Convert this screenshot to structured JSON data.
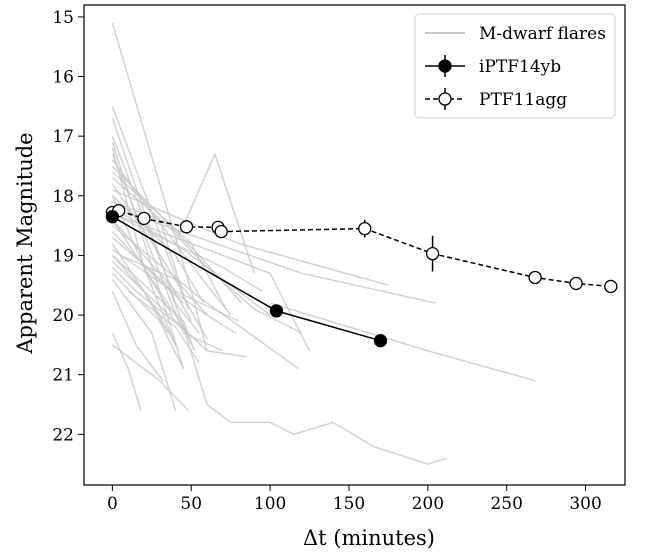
{
  "chart_data": {
    "type": "line",
    "xlabel": "Δt (minutes)",
    "ylabel": "Apparent Magnitude",
    "xlim": [
      -18,
      325
    ],
    "ylim": [
      22.85,
      14.8
    ],
    "y_inverted": true,
    "grid": false,
    "legend_placement": "top-right",
    "xticks": [
      0,
      50,
      100,
      150,
      200,
      250,
      300
    ],
    "yticks": [
      15,
      16,
      17,
      18,
      19,
      20,
      21,
      22
    ],
    "series": [
      {
        "name": "M-dwarf flares",
        "style": "faint-lines",
        "color": "#c8c8c8",
        "lines": [
          [
            [
              0,
              15.1
            ],
            [
              50,
              19.6
            ],
            [
              60,
              20.6
            ]
          ],
          [
            [
              0,
              16.5
            ],
            [
              45,
              19.7
            ],
            [
              60,
              20.4
            ]
          ],
          [
            [
              0,
              16.7
            ],
            [
              40,
              19.8
            ],
            [
              55,
              20.3
            ]
          ],
          [
            [
              0,
              17.0
            ],
            [
              35,
              19.4
            ],
            [
              50,
              20.1
            ]
          ],
          [
            [
              0,
              17.1
            ],
            [
              30,
              19.6
            ],
            [
              45,
              20.9
            ]
          ],
          [
            [
              0,
              17.2
            ],
            [
              20,
              19.2
            ],
            [
              40,
              20.5
            ]
          ],
          [
            [
              0,
              17.3
            ],
            [
              45,
              20.3
            ],
            [
              70,
              20.6
            ]
          ],
          [
            [
              0,
              17.4
            ],
            [
              60,
              19.5
            ],
            [
              75,
              20.0
            ]
          ],
          [
            [
              0,
              17.5
            ],
            [
              55,
              19.0
            ],
            [
              82,
              19.8
            ]
          ],
          [
            [
              0,
              17.6
            ],
            [
              50,
              18.8
            ],
            [
              72,
              19.9
            ]
          ],
          [
            [
              0,
              17.7
            ],
            [
              35,
              18.5
            ],
            [
              60,
              19.2
            ]
          ],
          [
            [
              0,
              17.8
            ],
            [
              28,
              18.9
            ],
            [
              42,
              19.5
            ]
          ],
          [
            [
              0,
              17.9
            ],
            [
              80,
              18.8
            ],
            [
              175,
              19.5
            ]
          ],
          [
            [
              0,
              18.0
            ],
            [
              40,
              19.0
            ],
            [
              58,
              19.8
            ]
          ],
          [
            [
              0,
              18.0
            ],
            [
              22,
              19.3
            ],
            [
              38,
              20.0
            ]
          ],
          [
            [
              0,
              18.1
            ],
            [
              30,
              18.4
            ],
            [
              48,
              19.9
            ]
          ],
          [
            [
              0,
              18.2
            ],
            [
              45,
              18.9
            ],
            [
              100,
              20.0
            ]
          ],
          [
            [
              0,
              18.2
            ],
            [
              120,
              19.3
            ],
            [
              205,
              19.8
            ]
          ],
          [
            [
              0,
              18.3
            ],
            [
              70,
              19.2
            ],
            [
              95,
              19.6
            ]
          ],
          [
            [
              0,
              18.3
            ],
            [
              100,
              19.3
            ],
            [
              125,
              20.6
            ]
          ],
          [
            [
              0,
              18.4
            ],
            [
              40,
              19.6
            ],
            [
              80,
              20.1
            ]
          ],
          [
            [
              0,
              18.5
            ],
            [
              55,
              19.7
            ],
            [
              118,
              20.9
            ]
          ],
          [
            [
              0,
              18.6
            ],
            [
              25,
              19.3
            ],
            [
              45,
              19.8
            ]
          ],
          [
            [
              0,
              18.7
            ],
            [
              35,
              19.5
            ],
            [
              50,
              20.5
            ]
          ],
          [
            [
              0,
              18.8
            ],
            [
              30,
              20.0
            ],
            [
              42,
              20.6
            ]
          ],
          [
            [
              0,
              18.9
            ],
            [
              60,
              20.0
            ],
            [
              78,
              20.3
            ]
          ],
          [
            [
              0,
              19.0
            ],
            [
              20,
              19.6
            ],
            [
              35,
              20.3
            ]
          ],
          [
            [
              0,
              19.0
            ],
            [
              45,
              20.1
            ],
            [
              52,
              20.6
            ]
          ],
          [
            [
              0,
              19.1
            ],
            [
              60,
              20.6
            ],
            [
              85,
              20.7
            ]
          ],
          [
            [
              0,
              19.2
            ],
            [
              15,
              19.6
            ],
            [
              48,
              20.3
            ]
          ],
          [
            [
              0,
              19.3
            ],
            [
              30,
              20.1
            ],
            [
              45,
              20.9
            ]
          ],
          [
            [
              0,
              19.4
            ],
            [
              25,
              20.3
            ],
            [
              40,
              21.6
            ]
          ],
          [
            [
              0,
              19.6
            ],
            [
              15,
              20.5
            ],
            [
              32,
              21.1
            ]
          ],
          [
            [
              0,
              20.3
            ],
            [
              10,
              20.9
            ],
            [
              18,
              21.6
            ]
          ],
          [
            [
              0,
              20.5
            ],
            [
              30,
              21.1
            ],
            [
              48,
              21.6
            ]
          ],
          [
            [
              5,
              19.0
            ],
            [
              40,
              19.4
            ],
            [
              60,
              20.0
            ]
          ],
          [
            [
              10,
              19.6
            ],
            [
              40,
              20.2
            ],
            [
              55,
              20.8
            ]
          ],
          [
            [
              40,
              18.8
            ],
            [
              65,
              17.3
            ],
            [
              90,
              19.3
            ]
          ],
          [
            [
              0,
              18.4
            ],
            [
              45,
              20.2
            ],
            [
              60,
              21.5
            ],
            [
              75,
              21.8
            ],
            [
              100,
              21.8
            ],
            [
              115,
              22.0
            ],
            [
              140,
              21.8
            ],
            [
              165,
              22.2
            ],
            [
              200,
              22.5
            ],
            [
              212,
              22.4
            ]
          ],
          [
            [
              100,
              19.8
            ],
            [
              200,
              20.6
            ],
            [
              268,
              21.1
            ]
          ],
          [
            [
              60,
              19.2
            ],
            [
              90,
              19.9
            ],
            [
              120,
              20.3
            ]
          ]
        ]
      },
      {
        "name": "iPTF14yb",
        "style": "solid-filled",
        "color": "#000000",
        "points": [
          {
            "x": 0,
            "y": 18.35,
            "err": 0.05
          },
          {
            "x": 104,
            "y": 19.93,
            "err": 0.06
          },
          {
            "x": 170,
            "y": 20.43,
            "err": 0.06
          }
        ]
      },
      {
        "name": "PTF11agg",
        "style": "dashed-open",
        "color": "#000000",
        "points": [
          {
            "x": 0,
            "y": 18.28,
            "err": 0.08
          },
          {
            "x": 4,
            "y": 18.25,
            "err": 0.08
          },
          {
            "x": 20,
            "y": 18.38,
            "err": 0.08
          },
          {
            "x": 47,
            "y": 18.52,
            "err": 0.08
          },
          {
            "x": 67,
            "y": 18.53,
            "err": 0.1
          },
          {
            "x": 69,
            "y": 18.6,
            "err": 0.1
          },
          {
            "x": 160,
            "y": 18.55,
            "err": 0.15
          },
          {
            "x": 203,
            "y": 18.97,
            "err": 0.3
          },
          {
            "x": 268,
            "y": 19.37,
            "err": 0.08
          },
          {
            "x": 294,
            "y": 19.47,
            "err": 0.08
          },
          {
            "x": 316,
            "y": 19.52,
            "err": 0.08
          }
        ]
      }
    ]
  }
}
